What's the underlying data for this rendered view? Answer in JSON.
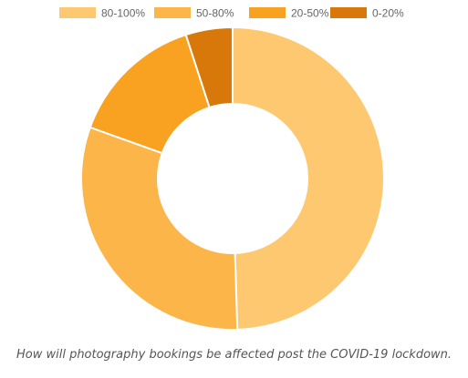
{
  "caption": "How will photography bookings be affected post the COVID-19 lockdown.",
  "chart_data": {
    "type": "pie",
    "variant": "doughnut",
    "title": "",
    "legend_position": "top",
    "categories": [
      "80-100%",
      "50-80%",
      "20-50%",
      "0-20%"
    ],
    "values": [
      49.5,
      31.0,
      14.5,
      5.0
    ],
    "unit": "percent",
    "start_angle_deg": 0,
    "direction": "clockwise",
    "colors": [
      "#FEC870",
      "#FBB548",
      "#F9A120",
      "#D9780A"
    ],
    "slice_border_color": "#ffffff"
  }
}
